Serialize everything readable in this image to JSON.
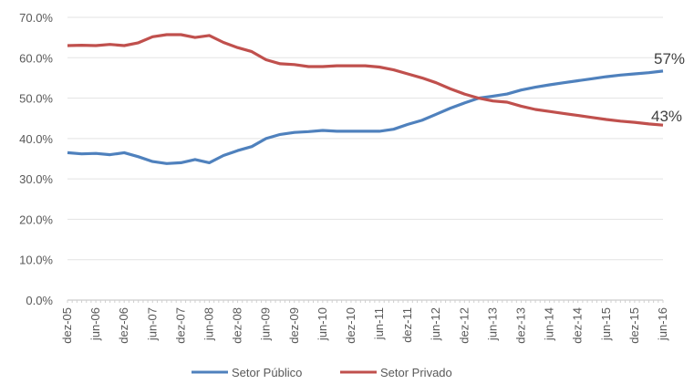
{
  "chart_data": {
    "type": "line",
    "title": "",
    "xlabel": "",
    "ylabel": "",
    "ylim": [
      0,
      70
    ],
    "grid": true,
    "legend_position": "bottom",
    "y_ticks": [
      "0.0%",
      "10.0%",
      "20.0%",
      "30.0%",
      "40.0%",
      "50.0%",
      "60.0%",
      "70.0%"
    ],
    "x_ticks": [
      "dez-05",
      "jun-06",
      "dez-06",
      "jun-07",
      "dez-07",
      "jun-08",
      "dez-08",
      "jun-09",
      "dez-09",
      "jun-10",
      "dez-10",
      "jun-11",
      "dez-11",
      "jun-12",
      "dez-12",
      "jun-13",
      "dez-13",
      "jun-14",
      "dez-14",
      "jun-15",
      "dez-15",
      "jun-16"
    ],
    "series": [
      {
        "name": "Setor Público",
        "color": "#4f81bd",
        "end_label": "57%",
        "points": [
          [
            "2005-12",
            36.5
          ],
          [
            "2006-03",
            36.2
          ],
          [
            "2006-06",
            36.3
          ],
          [
            "2006-09",
            36.0
          ],
          [
            "2006-12",
            36.5
          ],
          [
            "2007-03",
            35.5
          ],
          [
            "2007-06",
            34.3
          ],
          [
            "2007-09",
            33.8
          ],
          [
            "2007-12",
            34.0
          ],
          [
            "2008-03",
            34.8
          ],
          [
            "2008-06",
            34.0
          ],
          [
            "2008-09",
            35.8
          ],
          [
            "2008-12",
            37.0
          ],
          [
            "2009-03",
            38.0
          ],
          [
            "2009-06",
            40.0
          ],
          [
            "2009-09",
            41.0
          ],
          [
            "2009-12",
            41.5
          ],
          [
            "2010-03",
            41.7
          ],
          [
            "2010-06",
            42.0
          ],
          [
            "2010-09",
            41.8
          ],
          [
            "2010-12",
            41.8
          ],
          [
            "2011-03",
            41.8
          ],
          [
            "2011-06",
            41.8
          ],
          [
            "2011-09",
            42.3
          ],
          [
            "2011-12",
            43.5
          ],
          [
            "2012-03",
            44.5
          ],
          [
            "2012-06",
            46.0
          ],
          [
            "2012-09",
            47.5
          ],
          [
            "2012-12",
            48.8
          ],
          [
            "2013-03",
            50.0
          ],
          [
            "2013-06",
            50.5
          ],
          [
            "2013-09",
            51.0
          ],
          [
            "2013-12",
            52.0
          ],
          [
            "2014-03",
            52.7
          ],
          [
            "2014-06",
            53.3
          ],
          [
            "2014-09",
            53.8
          ],
          [
            "2014-12",
            54.3
          ],
          [
            "2015-03",
            54.8
          ],
          [
            "2015-06",
            55.3
          ],
          [
            "2015-09",
            55.7
          ],
          [
            "2015-12",
            56.0
          ],
          [
            "2016-03",
            56.3
          ],
          [
            "2016-06",
            56.7
          ]
        ]
      },
      {
        "name": "Setor Privado",
        "color": "#c0504d",
        "end_label": "43%",
        "points": [
          [
            "2005-12",
            63.0
          ],
          [
            "2006-03",
            63.1
          ],
          [
            "2006-06",
            63.0
          ],
          [
            "2006-09",
            63.3
          ],
          [
            "2006-12",
            63.0
          ],
          [
            "2007-03",
            63.7
          ],
          [
            "2007-06",
            65.2
          ],
          [
            "2007-09",
            65.7
          ],
          [
            "2007-12",
            65.7
          ],
          [
            "2008-03",
            65.0
          ],
          [
            "2008-06",
            65.5
          ],
          [
            "2008-09",
            63.8
          ],
          [
            "2008-12",
            62.5
          ],
          [
            "2009-03",
            61.5
          ],
          [
            "2009-06",
            59.5
          ],
          [
            "2009-09",
            58.5
          ],
          [
            "2009-12",
            58.3
          ],
          [
            "2010-03",
            57.8
          ],
          [
            "2010-06",
            57.8
          ],
          [
            "2010-09",
            58.0
          ],
          [
            "2010-12",
            58.0
          ],
          [
            "2011-03",
            58.0
          ],
          [
            "2011-06",
            57.7
          ],
          [
            "2011-09",
            57.0
          ],
          [
            "2011-12",
            56.0
          ],
          [
            "2012-03",
            55.0
          ],
          [
            "2012-06",
            53.8
          ],
          [
            "2012-09",
            52.3
          ],
          [
            "2012-12",
            51.0
          ],
          [
            "2013-03",
            50.0
          ],
          [
            "2013-06",
            49.3
          ],
          [
            "2013-09",
            49.0
          ],
          [
            "2013-12",
            48.0
          ],
          [
            "2014-03",
            47.2
          ],
          [
            "2014-06",
            46.7
          ],
          [
            "2014-09",
            46.2
          ],
          [
            "2014-12",
            45.7
          ],
          [
            "2015-03",
            45.2
          ],
          [
            "2015-06",
            44.7
          ],
          [
            "2015-09",
            44.3
          ],
          [
            "2015-12",
            44.0
          ],
          [
            "2016-03",
            43.6
          ],
          [
            "2016-06",
            43.3
          ]
        ]
      }
    ]
  }
}
